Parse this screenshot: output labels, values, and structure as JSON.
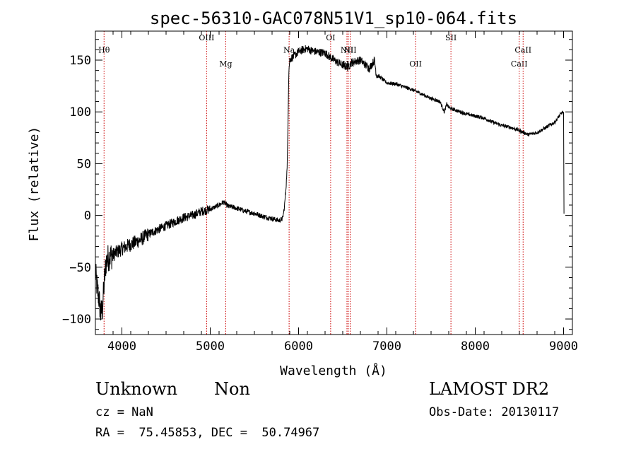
{
  "chart_data": {
    "type": "line",
    "title": "spec-56310-GAC078N51V1_sp10-064.fits",
    "xlabel": "Wavelength (Å)",
    "ylabel": "Flux (relative)",
    "xlim": [
      3700,
      9100
    ],
    "ylim": [
      -115,
      178
    ],
    "xticks": [
      4000,
      5000,
      6000,
      7000,
      8000,
      9000
    ],
    "yticks": [
      -100,
      -50,
      0,
      50,
      100,
      150
    ],
    "ytick_labels": [
      "−100",
      "−50",
      "0",
      "50",
      "100",
      "150"
    ],
    "grid": false,
    "line_color": "#000000",
    "marker_color": "#cc0000",
    "series": [
      {
        "x": [
          3700,
          3720,
          3740,
          3760,
          3780,
          3800,
          3820,
          3850,
          3900,
          3950,
          4000,
          4100,
          4200,
          4300,
          4400,
          4500,
          4600,
          4700,
          4800,
          4900,
          5000,
          5100,
          5150,
          5200,
          5300,
          5400,
          5500,
          5600,
          5700,
          5780,
          5820,
          5840,
          5860,
          5870,
          5880,
          5890,
          5900,
          5920,
          5950,
          6000,
          6050,
          6100,
          6150,
          6200,
          6300,
          6400,
          6500,
          6560,
          6600,
          6700,
          6800,
          6860,
          6880,
          6900,
          7000,
          7100,
          7200,
          7300,
          7400,
          7500,
          7600,
          7650,
          7680,
          7700,
          7800,
          7900,
          8000,
          8100,
          8200,
          8300,
          8400,
          8500,
          8550,
          8600,
          8700,
          8800,
          8900,
          8950,
          8990,
          9000,
          9005
        ],
        "y": [
          -55,
          -70,
          -80,
          -95,
          -90,
          -65,
          -45,
          -40,
          -38,
          -35,
          -32,
          -28,
          -24,
          -18,
          -14,
          -10,
          -6,
          -2,
          0,
          4,
          6,
          10,
          13,
          9,
          7,
          4,
          2,
          -1,
          -3,
          -5,
          -3,
          8,
          30,
          45,
          90,
          140,
          150,
          152,
          154,
          158,
          160,
          161,
          159,
          158,
          157,
          150,
          145,
          143,
          148,
          150,
          142,
          150,
          136,
          135,
          128,
          127,
          124,
          121,
          117,
          113,
          110,
          100,
          108,
          104,
          101,
          98,
          96,
          94,
          90,
          87,
          85,
          82,
          80,
          78,
          80,
          85,
          90,
          96,
          100,
          98,
          0
        ]
      }
    ],
    "lines": [
      {
        "label": "Hθ",
        "x": 3798,
        "label_y": 157
      },
      {
        "label": "OIII",
        "x": 4959,
        "label_y": 169
      },
      {
        "label": "Mg",
        "x": 5175,
        "label_y": 144
      },
      {
        "label": "Na",
        "x": 5893,
        "label_y": 157
      },
      {
        "label": "OI",
        "x": 6363,
        "label_y": 169
      },
      {
        "label": "NII",
        "x": 6548,
        "label_y": 157
      },
      {
        "label": "Hα",
        "x": 6563,
        "label_y": 144
      },
      {
        "label": "NII",
        "x": 6584,
        "label_y": 157
      },
      {
        "label": "OII",
        "x": 7325,
        "label_y": 144
      },
      {
        "label": "SII",
        "x": 7725,
        "label_y": 169
      },
      {
        "label": "CaII",
        "x": 8498,
        "label_y": 144
      },
      {
        "label": "CaII",
        "x": 8542,
        "label_y": 157
      }
    ]
  },
  "info": {
    "object_class": "Unknown",
    "subclass": "Non",
    "survey": "LAMOST DR2",
    "cz": "cz = NaN",
    "obs_date": "Obs-Date: 20130117",
    "coords": "RA =  75.45853, DEC =  50.74967"
  }
}
